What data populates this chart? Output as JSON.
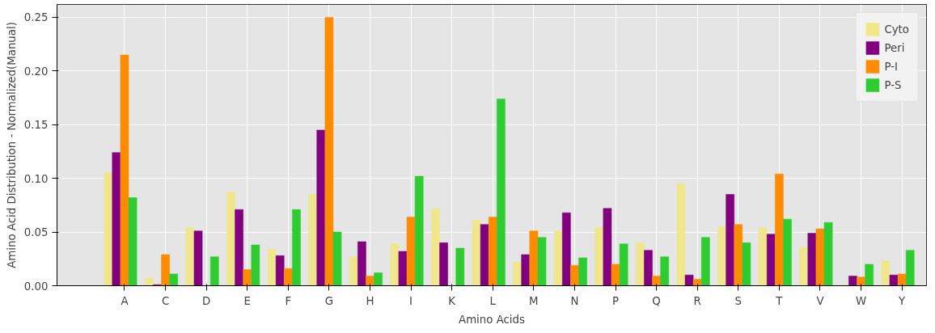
{
  "chart_data": {
    "type": "bar",
    "xlabel": "Amino Acids",
    "ylabel": "Amino Acid Distribution - Normalized(Manual)",
    "categories": [
      "A",
      "C",
      "D",
      "E",
      "F",
      "G",
      "H",
      "I",
      "K",
      "L",
      "M",
      "N",
      "P",
      "Q",
      "R",
      "S",
      "T",
      "V",
      "W",
      "Y"
    ],
    "series": [
      {
        "name": "Cyto",
        "color": "#f0e68c",
        "values": [
          0.105,
          0.007,
          0.054,
          0.087,
          0.034,
          0.085,
          0.027,
          0.039,
          0.072,
          0.061,
          0.022,
          0.051,
          0.054,
          0.04,
          0.095,
          0.055,
          0.054,
          0.036,
          0.001,
          0.023
        ]
      },
      {
        "name": "Peri",
        "color": "#800080",
        "values": [
          0.124,
          0.001,
          0.051,
          0.071,
          0.028,
          0.145,
          0.041,
          0.032,
          0.04,
          0.057,
          0.029,
          0.068,
          0.072,
          0.033,
          0.01,
          0.085,
          0.048,
          0.049,
          0.009,
          0.01
        ]
      },
      {
        "name": "P-I",
        "color": "#ff8c00",
        "values": [
          0.215,
          0.029,
          0,
          0.015,
          0.016,
          0.25,
          0.009,
          0.064,
          0,
          0.064,
          0.051,
          0.019,
          0.02,
          0.009,
          0.006,
          0.057,
          0.104,
          0.053,
          0.008,
          0.011
        ]
      },
      {
        "name": "P-S",
        "color": "#2ecc30",
        "values": [
          0.082,
          0.011,
          0.027,
          0.038,
          0.071,
          0.05,
          0.012,
          0.102,
          0.035,
          0.174,
          0.045,
          0.026,
          0.039,
          0.027,
          0.045,
          0.04,
          0.062,
          0.059,
          0.02,
          0.033
        ]
      }
    ],
    "ylim": [
      0,
      0.262
    ],
    "yticks": [
      {
        "value": 0,
        "label": "0.00"
      },
      {
        "value": 0.05,
        "label": "0.05"
      },
      {
        "value": 0.1,
        "label": "0.10"
      },
      {
        "value": 0.15,
        "label": "0.15"
      },
      {
        "value": 0.2,
        "label": "0.20"
      },
      {
        "value": 0.25,
        "label": "0.25"
      }
    ],
    "grid": true,
    "legend": "top right"
  }
}
